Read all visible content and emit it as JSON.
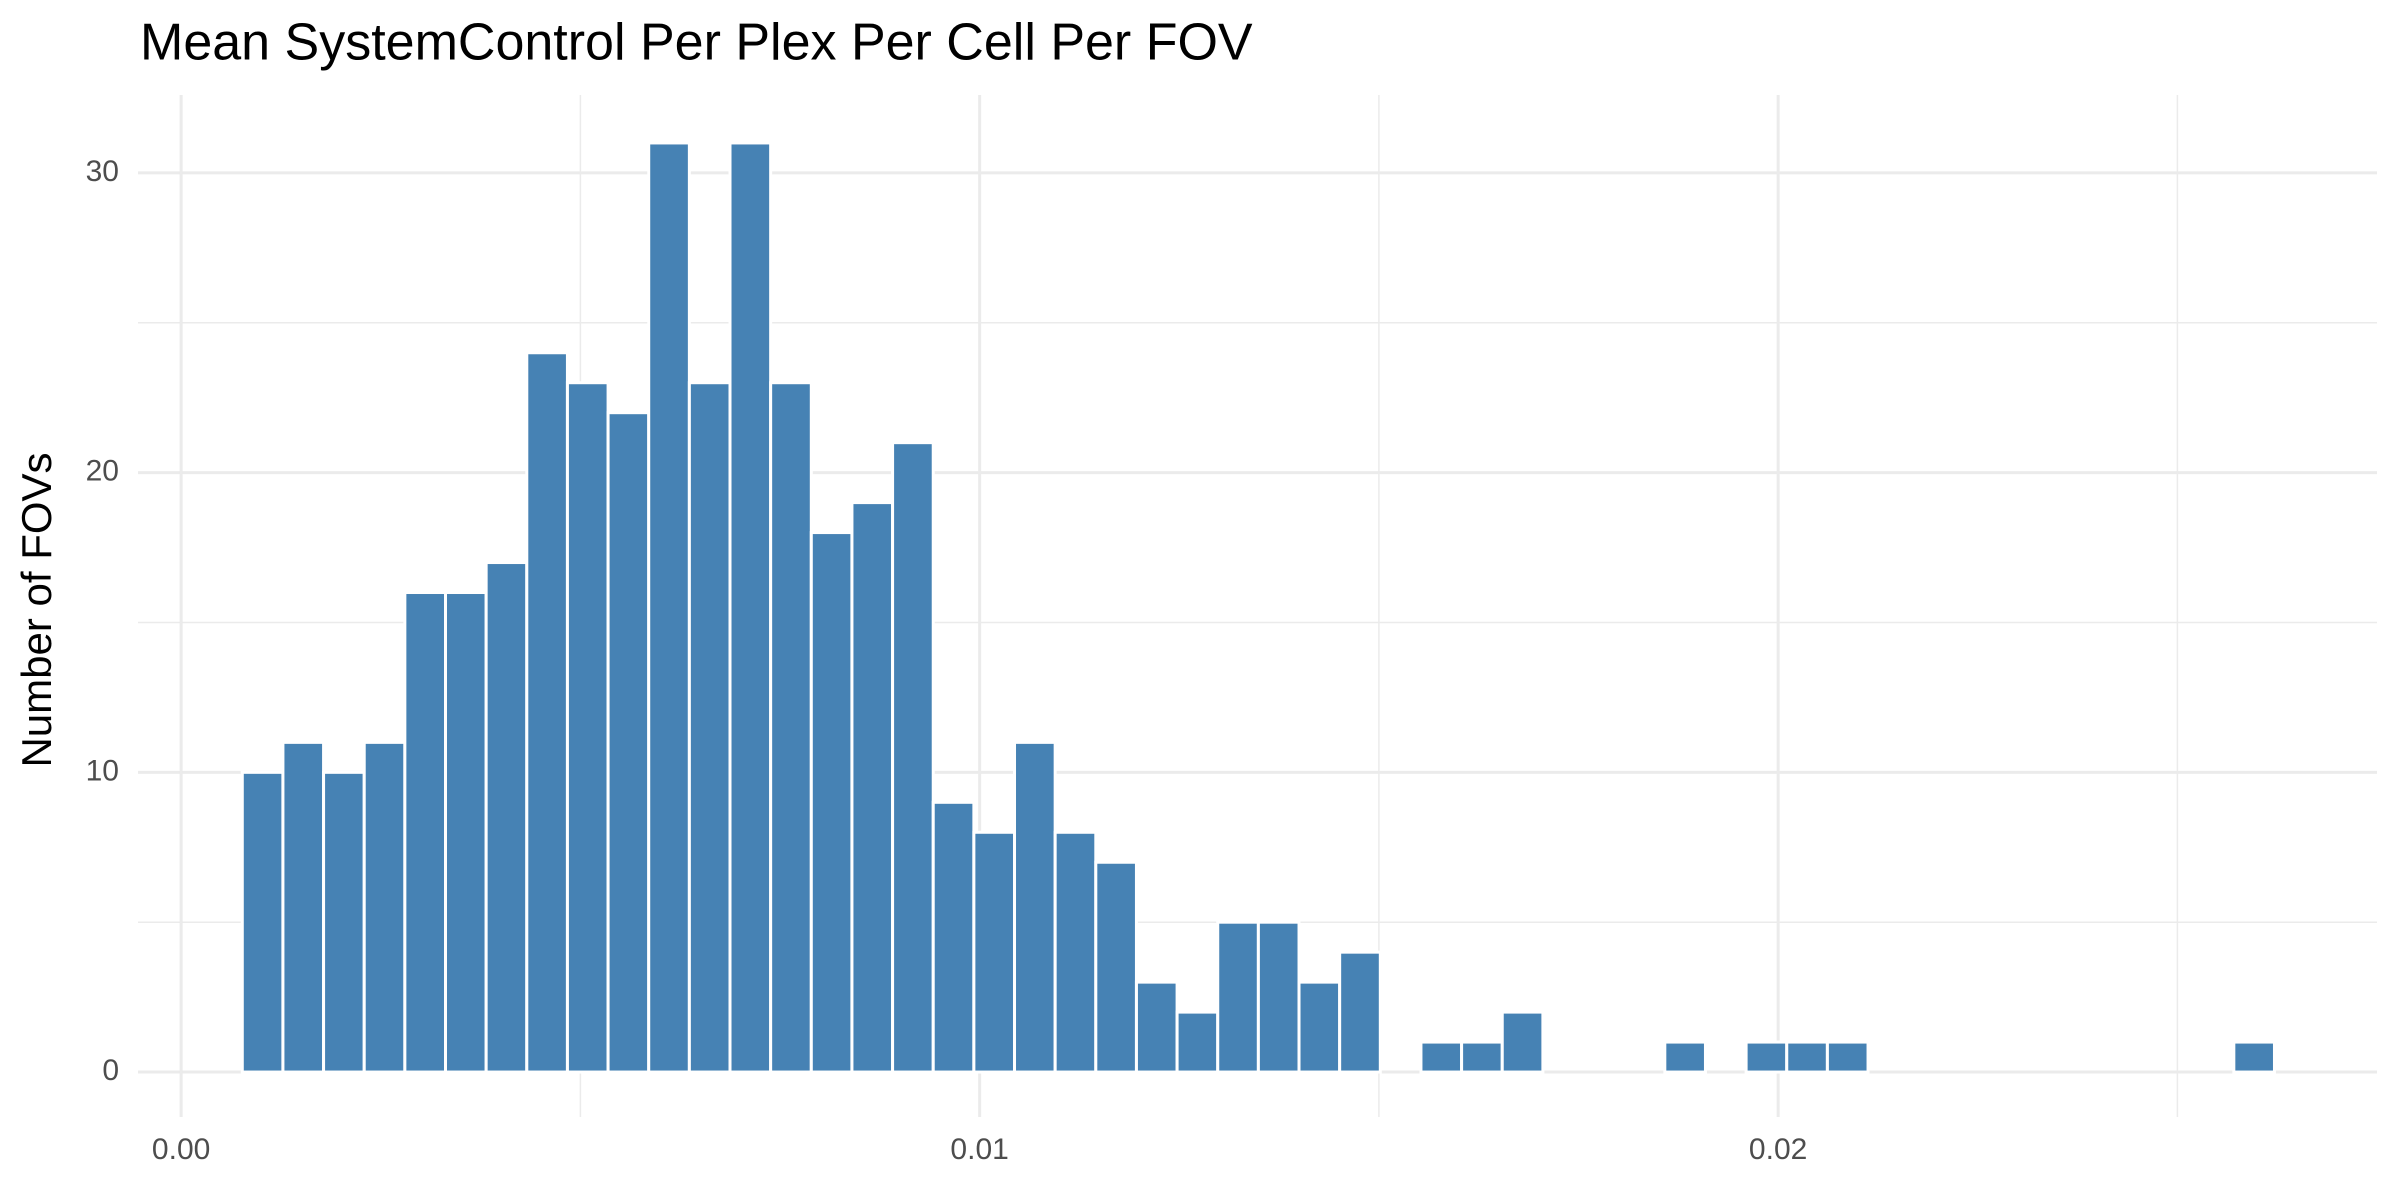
{
  "chart_data": {
    "type": "histogram",
    "title": "Mean SystemControl Per Plex Per Cell Per FOV",
    "y_label": "Number of FOVs",
    "bins": [
      0.000766,
      0.001275,
      0.001784,
      0.002293,
      0.002802,
      0.003311,
      0.00382,
      0.004329,
      0.004838,
      0.005347,
      0.005856,
      0.006365,
      0.006874,
      0.007383,
      0.007892,
      0.008401,
      0.00891,
      0.009419,
      0.009928,
      0.010437,
      0.010946,
      0.011455,
      0.011964,
      0.012473,
      0.012982,
      0.013491,
      0.014,
      0.014509,
      0.015018,
      0.015527,
      0.016036,
      0.016545,
      0.017054,
      0.017563,
      0.018072,
      0.018581,
      0.01909,
      0.019599,
      0.020108,
      0.020617,
      0.021126,
      0.021635,
      0.022144,
      0.022653,
      0.023162,
      0.023671,
      0.02418,
      0.024689,
      0.025198,
      0.025707,
      0.026216
    ],
    "values": [
      10,
      11,
      10,
      11,
      16,
      16,
      17,
      24,
      23,
      22,
      31,
      23,
      31,
      23,
      18,
      19,
      21,
      9,
      8,
      11,
      8,
      7,
      3,
      2,
      5,
      5,
      3,
      4,
      0,
      1,
      1,
      2,
      0,
      0,
      0,
      1,
      0,
      1,
      1,
      1,
      0,
      0,
      0,
      0,
      0,
      0,
      0,
      0,
      0,
      1
    ],
    "color": "#4682b4",
    "xlim": [
      -0.00054,
      0.0275
    ],
    "xticks": [
      {
        "value": 0,
        "label": "0.00"
      },
      {
        "value": 0.01,
        "label": "0.01"
      },
      {
        "value": 0.02,
        "label": "0.02"
      }
    ],
    "ylim": [
      -1.5,
      32.6
    ],
    "yticks": [
      0,
      10,
      20,
      30
    ],
    "grid": true
  }
}
